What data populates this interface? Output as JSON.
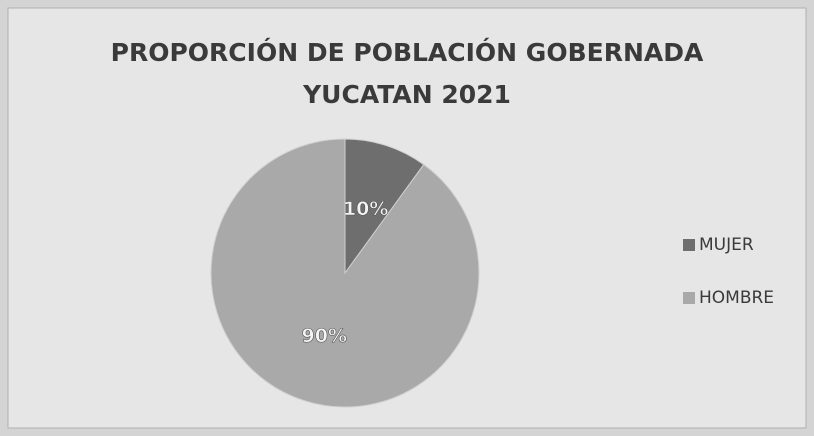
{
  "chart_data": {
    "type": "pie",
    "title": [
      "PROPORCIÓN DE POBLACIÓN GOBERNADA",
      "YUCATAN 2021"
    ],
    "categories": [
      "MUJER",
      "HOMBRE"
    ],
    "values": [
      10,
      90
    ],
    "value_labels": [
      "10%",
      "90%"
    ],
    "colors": [
      "#6e6e6e",
      "#a9a9a9"
    ],
    "legend": "right"
  }
}
